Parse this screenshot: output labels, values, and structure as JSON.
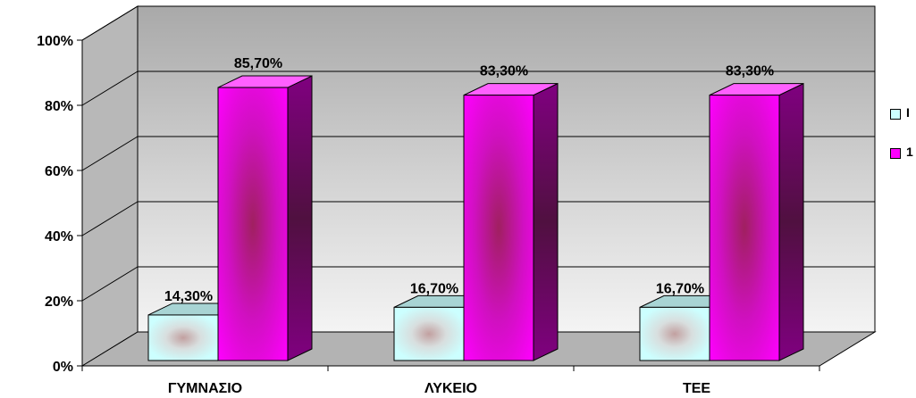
{
  "chart_data": {
    "type": "bar",
    "categories": [
      "ΓΥΜΝΑΣΙΟ",
      "ΛΥΚΕΙΟ",
      "ΤΕΕ"
    ],
    "series": [
      {
        "values": [
          14.3,
          16.7,
          16.7
        ],
        "labels": [
          "14,30%",
          "16,70%",
          "16,70%"
        ]
      },
      {
        "values": [
          85.7,
          83.3,
          83.3
        ],
        "labels": [
          "85,70%",
          "83,30%",
          "83,30%"
        ]
      }
    ],
    "ylim": [
      0,
      100
    ],
    "yticks": [
      "0%",
      "20%",
      "40%",
      "60%",
      "80%",
      "100%"
    ],
    "grid": true,
    "legend": "right",
    "legend_visible_text": [
      "Ι",
      "1"
    ],
    "colors": {
      "series1": "#ccffff",
      "series2": "#ff00ff",
      "floor": "#b3b3b3",
      "wall": "#c0c0c0"
    }
  }
}
